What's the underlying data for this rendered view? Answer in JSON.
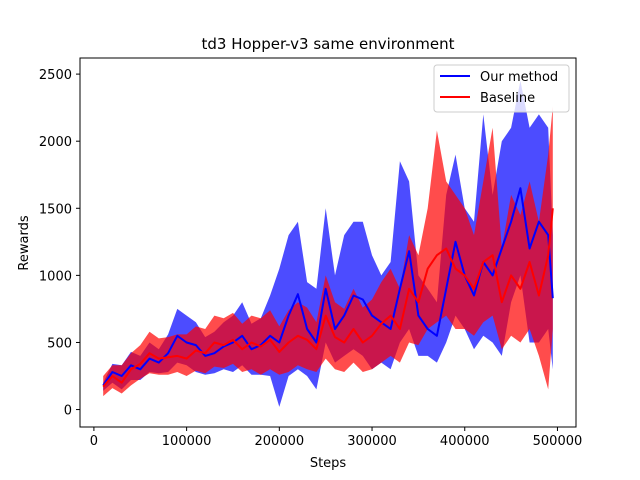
{
  "chart_data": {
    "type": "line",
    "title": "td3 Hopper-v3 same environment",
    "xlabel": "Steps",
    "ylabel": "Rewards",
    "xlim": [
      -15000,
      520000
    ],
    "ylim": [
      -130,
      2620
    ],
    "xticks": [
      0,
      100000,
      200000,
      300000,
      400000,
      500000
    ],
    "xtick_labels": [
      "0",
      "100000",
      "200000",
      "300000",
      "400000",
      "500000"
    ],
    "yticks": [
      0,
      500,
      1000,
      1500,
      2000,
      2500
    ],
    "ytick_labels": [
      "0",
      "500",
      "1000",
      "1500",
      "2000",
      "2500"
    ],
    "legend_position": "top-right",
    "grid": false,
    "series": [
      {
        "name": "Our method",
        "color": "#0000ff",
        "band_alpha": 0.7,
        "x": [
          10000,
          20000,
          30000,
          40000,
          50000,
          60000,
          70000,
          80000,
          90000,
          100000,
          110000,
          120000,
          130000,
          140000,
          150000,
          160000,
          170000,
          180000,
          190000,
          200000,
          210000,
          220000,
          230000,
          240000,
          250000,
          260000,
          270000,
          280000,
          290000,
          300000,
          310000,
          320000,
          330000,
          340000,
          350000,
          360000,
          370000,
          380000,
          390000,
          400000,
          410000,
          420000,
          430000,
          440000,
          450000,
          460000,
          470000,
          480000,
          490000,
          495000
        ],
        "mean": [
          180,
          280,
          250,
          330,
          300,
          380,
          350,
          420,
          550,
          500,
          480,
          400,
          420,
          470,
          500,
          550,
          450,
          480,
          550,
          500,
          700,
          860,
          600,
          500,
          900,
          600,
          700,
          850,
          820,
          700,
          650,
          600,
          900,
          1180,
          700,
          600,
          550,
          900,
          1250,
          1000,
          850,
          1100,
          1000,
          1200,
          1400,
          1650,
          1200,
          1400,
          1300,
          830
        ],
        "lower": [
          140,
          200,
          150,
          220,
          220,
          280,
          270,
          280,
          350,
          330,
          280,
          260,
          270,
          300,
          280,
          330,
          260,
          260,
          250,
          20,
          250,
          300,
          250,
          150,
          500,
          350,
          400,
          450,
          400,
          300,
          350,
          300,
          500,
          600,
          400,
          400,
          350,
          500,
          700,
          600,
          450,
          550,
          500,
          400,
          800,
          1000,
          500,
          500,
          600,
          300
        ],
        "upper": [
          200,
          340,
          330,
          430,
          400,
          500,
          450,
          560,
          750,
          700,
          650,
          540,
          580,
          650,
          700,
          800,
          640,
          680,
          850,
          1050,
          1300,
          1400,
          950,
          900,
          1500,
          1000,
          1300,
          1400,
          1400,
          1150,
          1000,
          1100,
          1850,
          1700,
          1000,
          900,
          800,
          1600,
          1900,
          1500,
          1400,
          2200,
          1600,
          2000,
          2100,
          2450,
          2100,
          2200,
          2100,
          1300
        ]
      },
      {
        "name": "Baseline",
        "color": "#ff0000",
        "band_alpha": 0.7,
        "x": [
          10000,
          20000,
          30000,
          40000,
          50000,
          60000,
          70000,
          80000,
          90000,
          100000,
          110000,
          120000,
          130000,
          140000,
          150000,
          160000,
          170000,
          180000,
          190000,
          200000,
          210000,
          220000,
          230000,
          240000,
          250000,
          260000,
          270000,
          280000,
          290000,
          300000,
          310000,
          320000,
          330000,
          340000,
          350000,
          360000,
          370000,
          380000,
          390000,
          400000,
          410000,
          420000,
          430000,
          440000,
          450000,
          460000,
          470000,
          480000,
          490000,
          495000
        ],
        "mean": [
          170,
          250,
          200,
          300,
          340,
          420,
          380,
          390,
          400,
          380,
          440,
          420,
          500,
          480,
          520,
          450,
          500,
          470,
          520,
          430,
          500,
          550,
          520,
          450,
          700,
          540,
          500,
          600,
          500,
          550,
          640,
          700,
          600,
          900,
          800,
          1050,
          1150,
          1200,
          1050,
          1000,
          900,
          1100,
          1150,
          800,
          1000,
          900,
          1100,
          850,
          1150,
          1500
        ],
        "lower": [
          100,
          160,
          120,
          180,
          230,
          270,
          260,
          260,
          280,
          250,
          290,
          270,
          320,
          310,
          340,
          280,
          300,
          260,
          300,
          260,
          280,
          330,
          300,
          280,
          380,
          300,
          280,
          350,
          280,
          300,
          350,
          400,
          350,
          500,
          480,
          600,
          650,
          700,
          600,
          600,
          550,
          650,
          700,
          450,
          550,
          500,
          600,
          400,
          150,
          600
        ],
        "upper": [
          250,
          330,
          330,
          420,
          480,
          580,
          530,
          540,
          560,
          560,
          620,
          600,
          700,
          680,
          720,
          640,
          700,
          680,
          740,
          620,
          740,
          800,
          760,
          650,
          1000,
          800,
          750,
          900,
          760,
          820,
          950,
          1050,
          900,
          1300,
          1150,
          1500,
          2080,
          1700,
          1600,
          1500,
          1300,
          1700,
          2100,
          1200,
          1600,
          1450,
          1700,
          1400,
          1900,
          2260
        ]
      }
    ]
  }
}
